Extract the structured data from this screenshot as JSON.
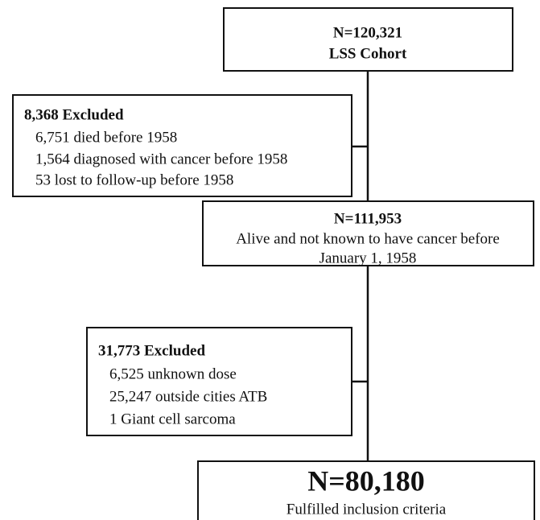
{
  "nodes": [
    {
      "title": "N=120,321",
      "lines": [
        "LSS Cohort"
      ]
    },
    {
      "title": "8,368 Excluded",
      "lines": [
        "6,751 died before 1958",
        "1,564 diagnosed with cancer before 1958",
        "53 lost to follow-up before 1958"
      ]
    },
    {
      "title": "N=111,953",
      "lines": [
        "Alive and not known to have cancer before",
        "January 1, 1958"
      ]
    },
    {
      "title": "31,773 Excluded",
      "lines": [
        "6,525 unknown dose",
        "25,247 outside cities ATB",
        "1 Giant cell sarcoma"
      ]
    },
    {
      "title": "N=80,180",
      "lines": [
        "Fulfilled inclusion criteria"
      ]
    }
  ]
}
